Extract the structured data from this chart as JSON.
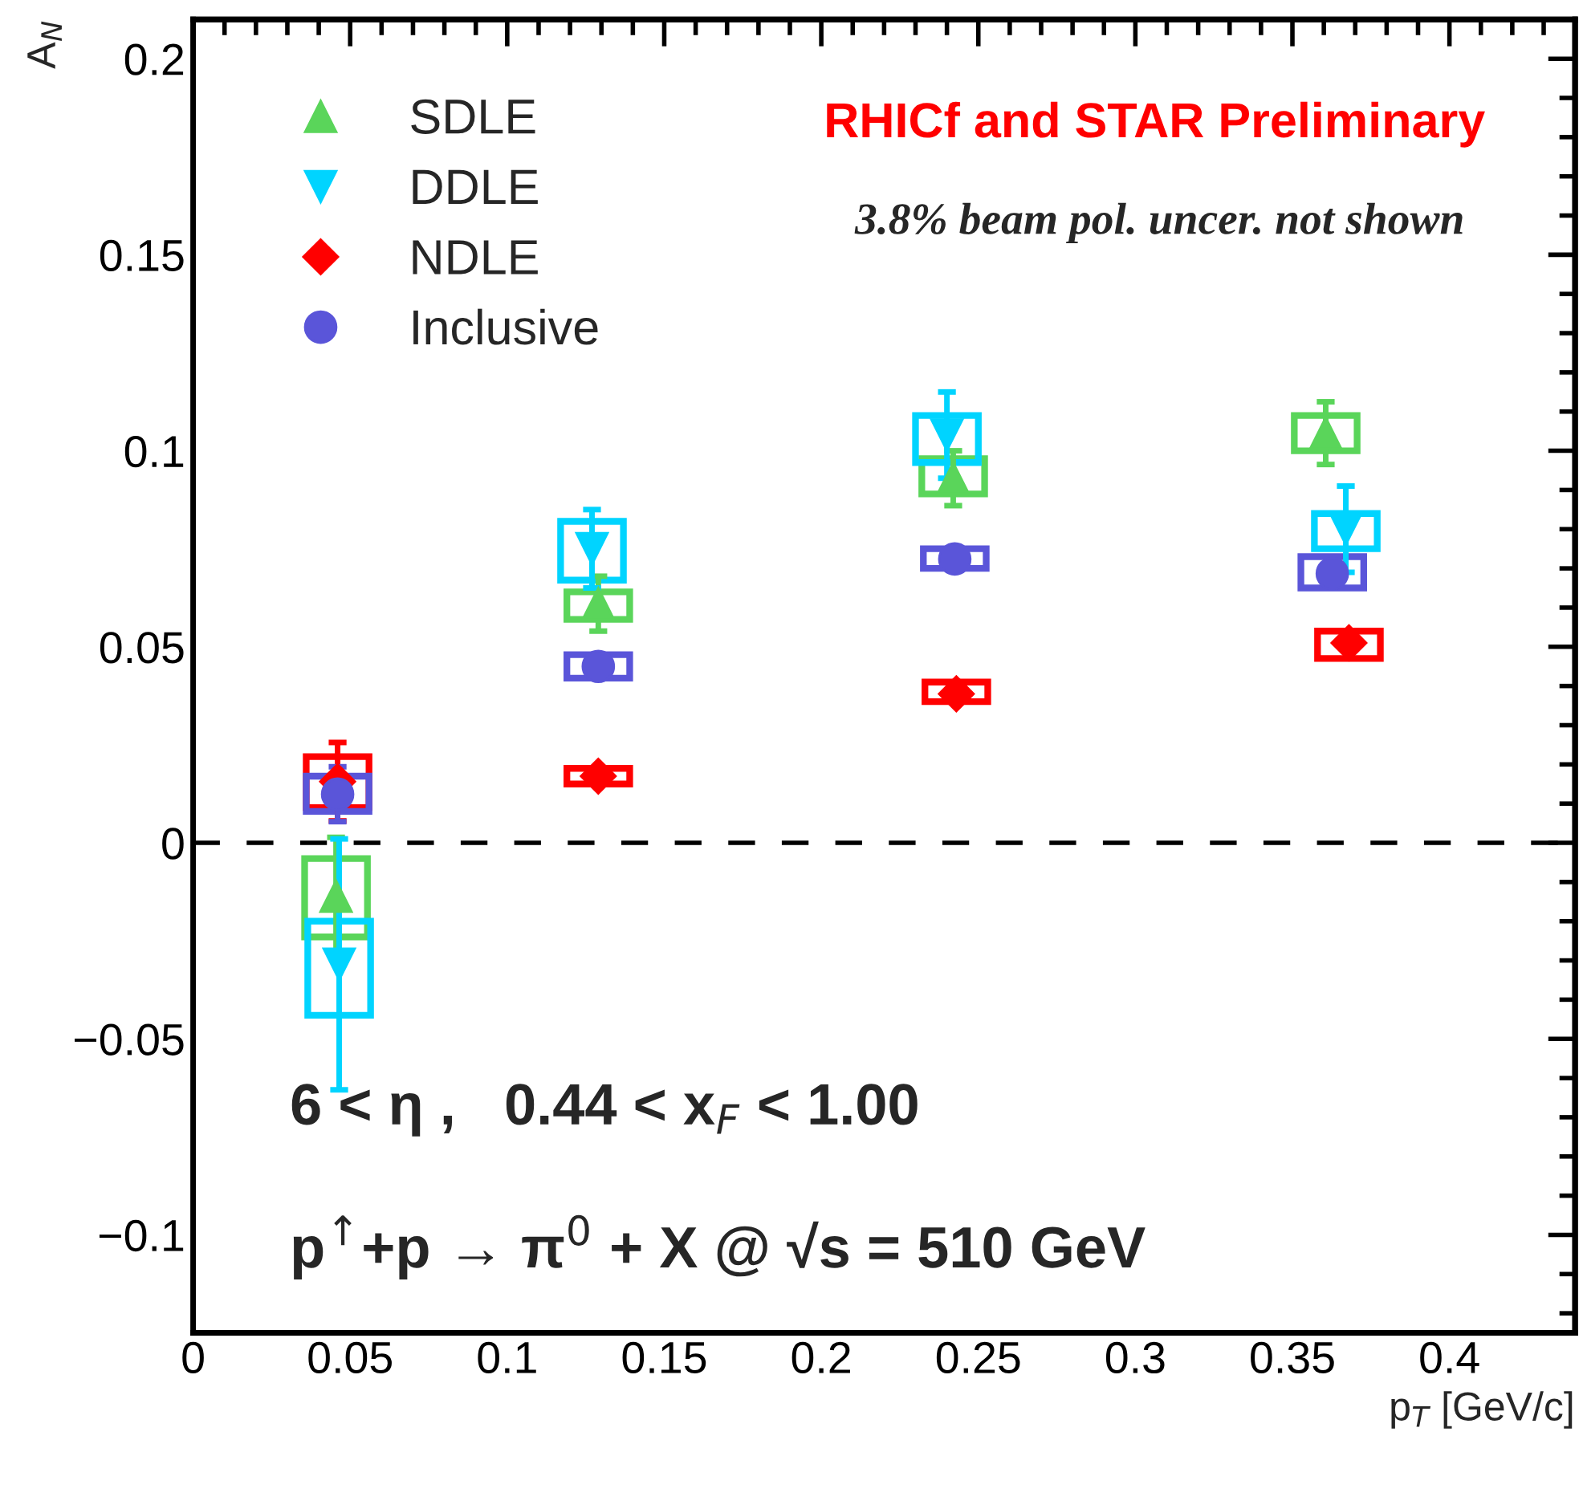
{
  "chart_data": {
    "type": "scatter",
    "xlabel": "p$_{T}$ [GeV/c]",
    "ylabel": "A$_{N}$",
    "xlim": [
      0,
      0.44
    ],
    "ylim": [
      -0.125,
      0.21
    ],
    "xticks": [
      0,
      0.05,
      0.1,
      0.15,
      0.2,
      0.25,
      0.3,
      0.35,
      0.4
    ],
    "yticks": [
      {
        "value": -0.1,
        "label": "−0.1"
      },
      {
        "value": -0.05,
        "label": "−0.05"
      },
      0,
      0.05,
      0.1,
      0.15,
      0.2
    ],
    "legend": "top left",
    "ref_lines": [
      {
        "axis": "y",
        "value": 0,
        "color": "#000000",
        "line_style": "dashed"
      }
    ],
    "annotations": [
      "RHICf and STAR Preliminary",
      "3.8% beam pol. uncer. not shown",
      "6 < η ,   0.44 < x$_{F}$ < 1.00",
      "p$^{↑}$+p → π$^{0}$ + X @ √s = 510 GeV"
    ],
    "series": [
      {
        "type": "bar",
        "color": "#5ad55a",
        "x": [
          0.0455,
          0.129,
          0.242,
          0.3606
        ],
        "base": [
          -0.024,
          0.057,
          0.089,
          0.1
        ],
        "values": [
          0.02,
          0.007,
          0.009,
          0.009
        ]
      },
      {
        "type": "bar",
        "color": "#00d4ff",
        "x": [
          0.0465,
          0.127,
          0.24,
          0.367
        ],
        "base": [
          -0.044,
          0.067,
          0.097,
          0.075
        ],
        "values": [
          0.024,
          0.015,
          0.012,
          0.009
        ]
      },
      {
        "type": "bar",
        "color": "#ff0000",
        "x": [
          0.046,
          0.129,
          0.243,
          0.368
        ],
        "base": [
          0.009,
          0.015,
          0.036,
          0.047
        ],
        "values": [
          0.013,
          0.004,
          0.005,
          0.007
        ]
      },
      {
        "type": "bar",
        "color": "#5a55d9",
        "x": [
          0.046,
          0.129,
          0.2425,
          0.3627
        ],
        "base": [
          0.008,
          0.042,
          0.07,
          0.065
        ],
        "values": [
          0.009,
          0.006,
          0.005,
          0.008
        ]
      },
      {
        "name": "SDLE",
        "color": "#5ad55a",
        "marker": "triangle",
        "x": [
          0.0455,
          0.129,
          0.242,
          0.3606
        ],
        "values": [
          -0.0136,
          0.061,
          0.093,
          0.1045
        ],
        "errors": [
          0.015,
          0.007,
          0.007,
          0.008
        ]
      },
      {
        "name": "DDLE",
        "color": "#00d4ff",
        "marker": "triangle_down",
        "x": [
          0.0465,
          0.127,
          0.24,
          0.367
        ],
        "values": [
          -0.031,
          0.075,
          0.104,
          0.08
        ],
        "errors": [
          0.032,
          0.01,
          0.011,
          0.011
        ]
      },
      {
        "name": "NDLE",
        "color": "#ff0000",
        "marker": "diamond",
        "x": [
          0.046,
          0.129,
          0.243,
          0.368
        ],
        "values": [
          0.0156,
          0.017,
          0.038,
          0.051
        ],
        "errors": [
          0.01,
          null,
          null,
          null
        ]
      },
      {
        "name": "Inclusive",
        "color": "#5a55d9",
        "marker": "circle",
        "x": [
          0.046,
          0.129,
          0.2425,
          0.3627
        ],
        "values": [
          0.0124,
          0.045,
          0.0724,
          0.0687
        ],
        "errors": [
          0.007,
          null,
          null,
          null
        ]
      }
    ]
  }
}
